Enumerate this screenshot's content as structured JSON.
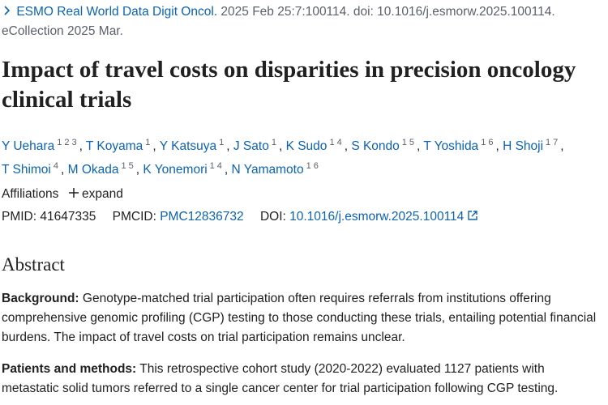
{
  "citation": {
    "journal": "ESMO Real World Data Digit Oncol.",
    "details": "2025 Feb 25:7:100114. doi: 10.1016/j.esmorw.2025.100114. eCollection 2025 Mar."
  },
  "title": "Impact of travel costs on disparities in precision oncology clinical trials",
  "authors": [
    {
      "name": "Y Uehara",
      "affiliations": [
        "1",
        "2",
        "3"
      ],
      "punct": ","
    },
    {
      "name": "T Koyama",
      "affiliations": [
        "1"
      ],
      "punct": ","
    },
    {
      "name": "Y Katsuya",
      "affiliations": [
        "1"
      ],
      "punct": ","
    },
    {
      "name": "J Sato",
      "affiliations": [
        "1"
      ],
      "punct": ","
    },
    {
      "name": "K Sudo",
      "affiliations": [
        "1",
        "4"
      ],
      "punct": ","
    },
    {
      "name": "S Kondo",
      "affiliations": [
        "1",
        "5"
      ],
      "punct": ","
    },
    {
      "name": "T Yoshida",
      "affiliations": [
        "1",
        "6"
      ],
      "punct": ","
    },
    {
      "name": "H Shoji",
      "affiliations": [
        "1",
        "7"
      ],
      "punct": ","
    },
    {
      "name": "T Shimoi",
      "affiliations": [
        "4"
      ],
      "punct": ","
    },
    {
      "name": "M Okada",
      "affiliations": [
        "1",
        "5"
      ],
      "punct": ","
    },
    {
      "name": "K Yonemori",
      "affiliations": [
        "1",
        "4"
      ],
      "punct": ","
    },
    {
      "name": "N Yamamoto",
      "affiliations": [
        "1",
        "6"
      ]
    }
  ],
  "affiliations": {
    "label": "Affiliations",
    "toggle": "expand"
  },
  "identifiers": {
    "pmid_label": "PMID:",
    "pmid": "41647335",
    "pmcid_label": "PMCID:",
    "pmcid": "PMC12836732",
    "doi_label": "DOI:",
    "doi": "10.1016/j.esmorw.2025.100114"
  },
  "abstract": {
    "heading": "Abstract",
    "sections": [
      {
        "label": "Background:",
        "text": "Genotype-matched trial participation often requires referrals from institutions offering comprehensive genomic profiling (CGP) testing to those conducting these trials, entailing potential financial burdens. The impact of travel costs on trial participation remains unclear."
      },
      {
        "label": "Patients and methods:",
        "text": "This retrospective cohort study (2020-2022) evaluated 1127 patients with metastatic solid tumors referred to a single cancer center for trial participation following CGP testing."
      }
    ]
  }
}
